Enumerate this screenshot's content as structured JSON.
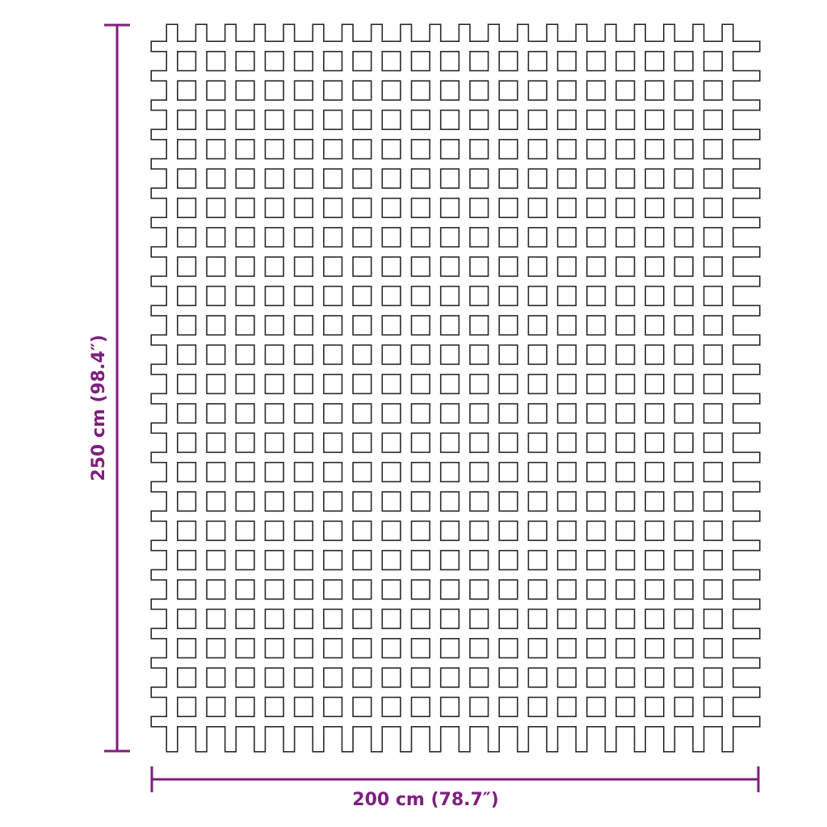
{
  "product": "grid mat",
  "dimensions": {
    "height_label": "250 cm (98.4″)",
    "width_label": "200 cm (78.7″)"
  },
  "grid": {
    "columns": 20,
    "horizontal_bars": 24
  },
  "colors": {
    "dimension": "#7e1f7e",
    "outline": "#2a2a2a",
    "background": "#ffffff"
  }
}
